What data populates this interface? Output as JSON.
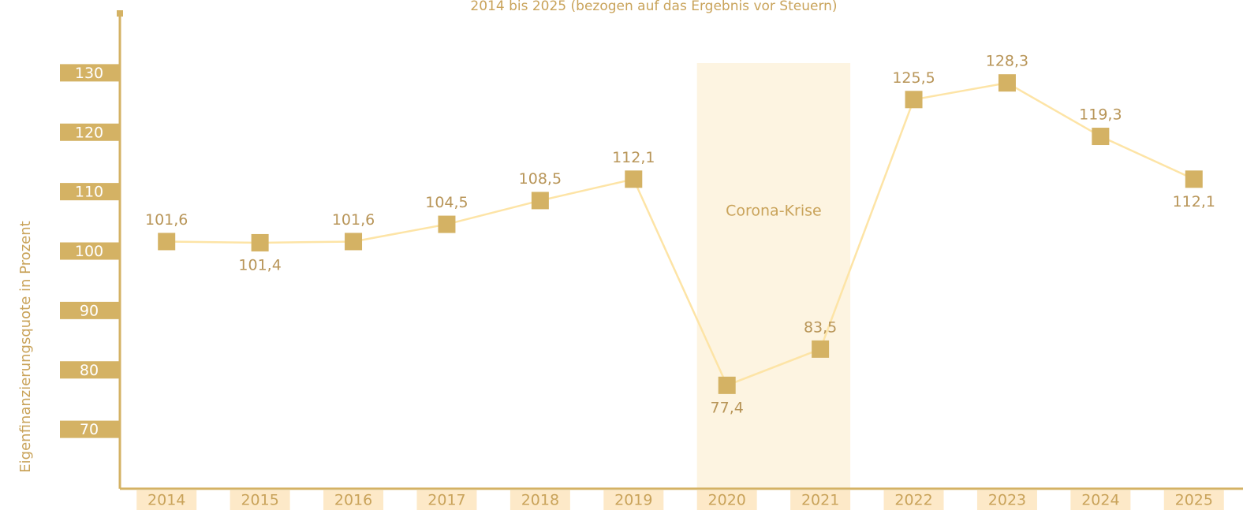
{
  "chart_data": {
    "type": "line",
    "title": "2014 bis 2025 (bezogen auf das Ergebnis vor Steuern)",
    "y_label": "Eigenfinanzierungsquote in Prozent",
    "categories": [
      "2014",
      "2015",
      "2016",
      "2017",
      "2018",
      "2019",
      "2020",
      "2021",
      "2022",
      "2023",
      "2024",
      "2025"
    ],
    "values": [
      101.6,
      101.4,
      101.6,
      104.5,
      108.5,
      112.1,
      77.4,
      83.5,
      125.5,
      128.3,
      119.3,
      112.1
    ],
    "value_labels": [
      "101,6",
      "101,4",
      "101,6",
      "104,5",
      "108,5",
      "112,1",
      "77,4",
      "83,5",
      "125,5",
      "128,3",
      "119,3",
      "112,1"
    ],
    "color": "#d4b264",
    "line_color": "#fde4a6",
    "ylim": [
      60,
      140
    ],
    "yticks": [
      70,
      80,
      90,
      100,
      110,
      120,
      130
    ],
    "highlight": {
      "label": "Corona-Krise",
      "from": "2020",
      "to": "2021"
    }
  }
}
